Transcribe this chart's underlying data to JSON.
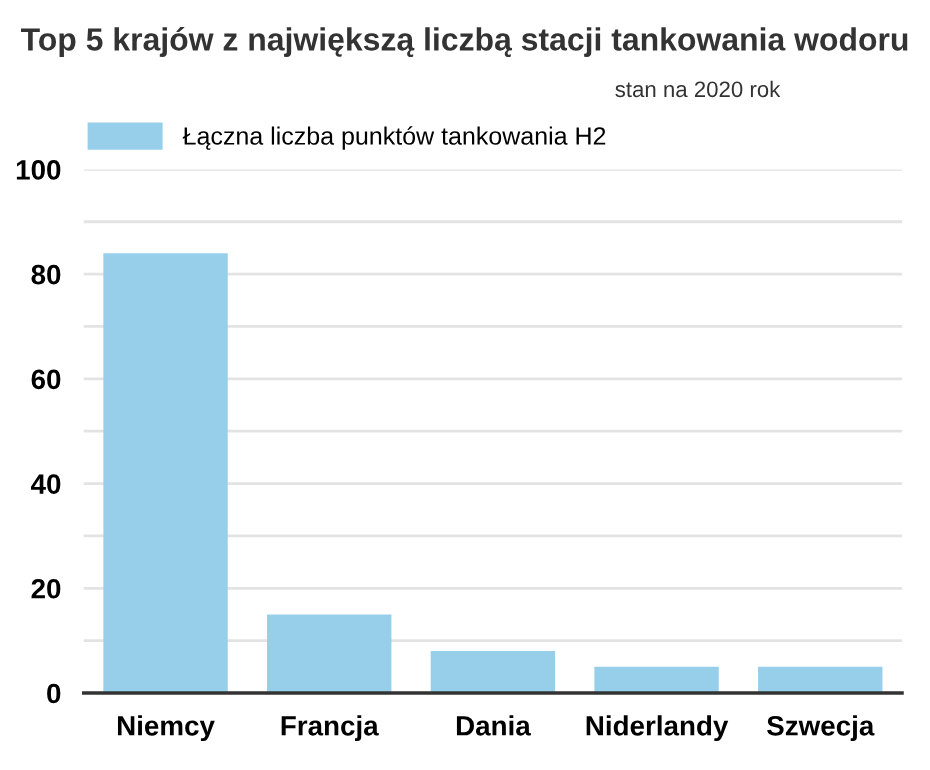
{
  "chart_data": {
    "type": "bar",
    "title": "Top 5 krajów z największą liczbą stacji tankowania wodoru",
    "subtitle": "stan na 2020 rok",
    "categories": [
      "Niemcy",
      "Francja",
      "Dania",
      "Niderlandy",
      "Szwecja"
    ],
    "series": [
      {
        "name": "Łączna liczba punktów tankowania H2",
        "color": "#97cfeb",
        "values": [
          84,
          15,
          8,
          5,
          5
        ]
      }
    ],
    "ylim": [
      0,
      100
    ],
    "yticks": [
      0,
      {
        "value": 10,
        "label": null
      },
      20,
      {
        "value": 30,
        "label": null
      },
      40,
      {
        "value": 50,
        "label": null
      },
      60,
      {
        "value": 70,
        "label": null
      },
      80,
      {
        "value": 90,
        "label": null
      },
      100
    ],
    "grid": "y",
    "legend": "top left"
  }
}
